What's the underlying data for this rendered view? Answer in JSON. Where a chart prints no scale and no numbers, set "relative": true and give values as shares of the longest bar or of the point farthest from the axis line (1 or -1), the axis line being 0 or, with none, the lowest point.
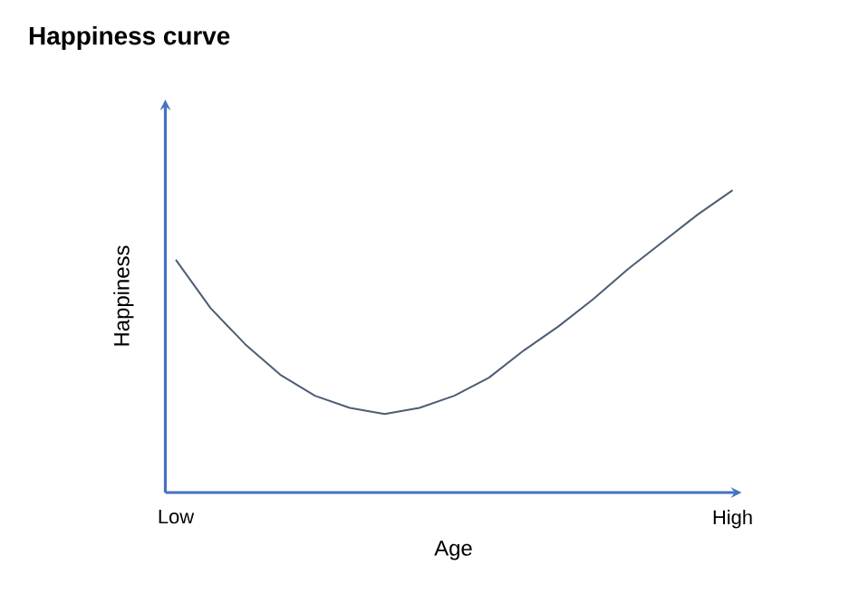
{
  "chart_data": {
    "type": "line",
    "title": "Happiness curve",
    "xlabel": "Age",
    "ylabel": "Happiness",
    "relative": true,
    "categories": [
      "Low",
      null,
      null,
      null,
      null,
      null,
      null,
      null,
      null,
      null,
      null,
      null,
      null,
      null,
      null,
      null,
      "High"
    ],
    "series": [
      {
        "color": "#4d5d72",
        "values": [
          0.77,
          0.61,
          0.49,
          0.39,
          0.32,
          0.28,
          0.26,
          0.28,
          0.32,
          0.38,
          0.47,
          0.55,
          0.64,
          0.74,
          0.83,
          0.92,
          1.0
        ]
      }
    ],
    "marker": "none",
    "line_style": "solid"
  }
}
